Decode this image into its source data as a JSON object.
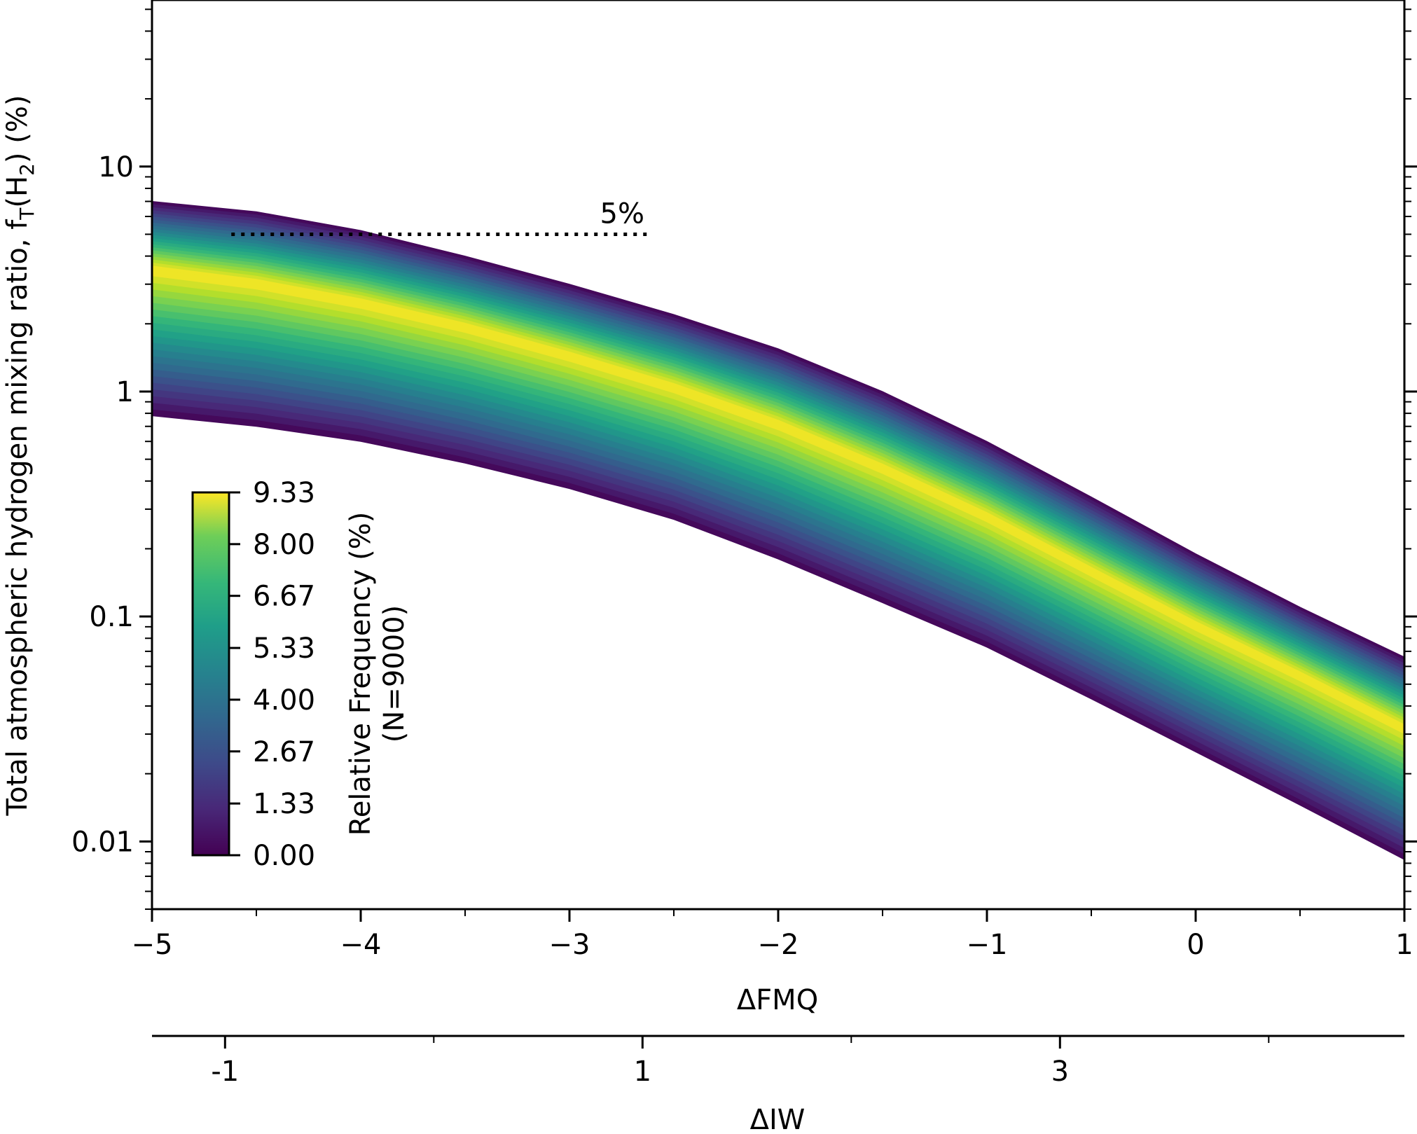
{
  "chart_data": {
    "type": "heatmap",
    "title": "",
    "xlabel": "ΔFMQ",
    "xlabel2": "ΔIW",
    "ylabel_main": "Total atmospheric hydrogen mixing ratio, f",
    "ylabel_sub1": "T",
    "ylabel_mid": "(H",
    "ylabel_sub2": "2",
    "ylabel_end": ") (%)",
    "xlim": [
      -5,
      1
    ],
    "x2lim": [
      -1.35,
      4.65
    ],
    "ylim": [
      0.005,
      55
    ],
    "yscale": "log",
    "x_ticks": [
      {
        "value": -5,
        "label": "−5"
      },
      {
        "value": -4,
        "label": "−4"
      },
      {
        "value": -3,
        "label": "−3"
      },
      {
        "value": -2,
        "label": "−2"
      },
      {
        "value": -1,
        "label": "−1"
      },
      {
        "value": 0,
        "label": "0"
      },
      {
        "value": 1,
        "label": "1"
      }
    ],
    "x_minor_ticks": [
      -4.5,
      -3.5,
      -2.5,
      -1.5,
      -0.5,
      0.5
    ],
    "x2_ticks": [
      {
        "value": -1,
        "label": "-1"
      },
      {
        "value": 1,
        "label": "1"
      },
      {
        "value": 3,
        "label": "3"
      }
    ],
    "x2_minor_ticks": [
      0,
      2,
      4
    ],
    "y_ticks": [
      {
        "value": 0.01,
        "label": "0.01"
      },
      {
        "value": 0.1,
        "label": "0.1"
      },
      {
        "value": 1,
        "label": "1"
      },
      {
        "value": 10,
        "label": "10"
      }
    ],
    "band": {
      "x": [
        -5,
        -4.5,
        -4,
        -3.5,
        -3,
        -2.5,
        -2,
        -1.5,
        -1,
        -0.5,
        0,
        0.5,
        1
      ],
      "upper": [
        7.0,
        6.3,
        5.2,
        4.0,
        3.0,
        2.2,
        1.55,
        1.0,
        0.6,
        0.34,
        0.19,
        0.11,
        0.066
      ],
      "peak": [
        3.5,
        3.05,
        2.5,
        1.95,
        1.45,
        1.05,
        0.72,
        0.46,
        0.28,
        0.16,
        0.092,
        0.055,
        0.032
      ],
      "lower": [
        0.78,
        0.7,
        0.6,
        0.48,
        0.37,
        0.27,
        0.18,
        0.115,
        0.073,
        0.043,
        0.025,
        0.0145,
        0.0083
      ]
    },
    "reference_line": {
      "value": 5,
      "x_start": -4.62,
      "x_end": -2.62,
      "label": "5%",
      "style": "dotted"
    },
    "colorbar": {
      "label": "Relative Frequency (%)",
      "label2": "(N=9000)",
      "min": 0.0,
      "max": 9.33,
      "ticks": [
        "0.00",
        "1.33",
        "2.67",
        "4.00",
        "5.33",
        "6.67",
        "8.00",
        "9.33"
      ],
      "colormap": "viridis",
      "placement": "inside-left"
    },
    "colors": {
      "low": "#440154",
      "mid": "#21918c",
      "high": "#fde725"
    },
    "grid": false
  }
}
